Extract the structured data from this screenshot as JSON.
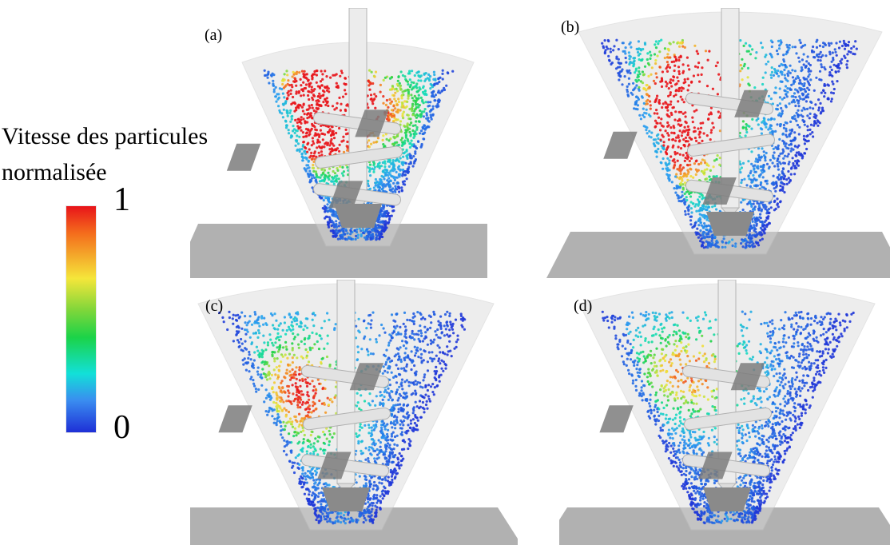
{
  "legend": {
    "title_line1": "Vitesse des particules",
    "title_line2": "normalisée",
    "max": "1",
    "min": "0"
  },
  "panels": [
    {
      "label": "(a)"
    },
    {
      "label": "(b)"
    },
    {
      "label": "(c)"
    },
    {
      "label": "(d)"
    }
  ],
  "colors": {
    "scale_high": "#e8141a",
    "scale_mid": "#1bd348",
    "scale_low": "#1e2fd6",
    "base_plate": "#9c9c9c",
    "shaft": "#e6e6e6"
  }
}
